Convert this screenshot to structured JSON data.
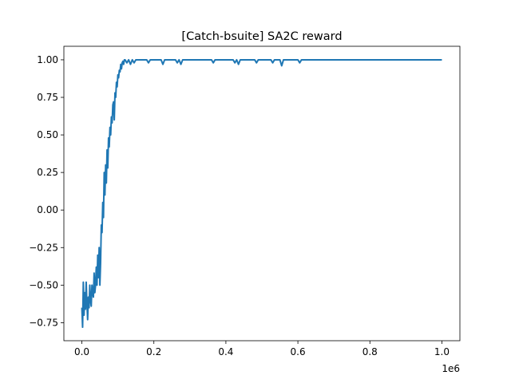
{
  "chart_data": {
    "type": "line",
    "title": "[Catch-bsuite] SA2C reward",
    "xlabel": "",
    "ylabel": "",
    "x_offset_label": "1e6",
    "xlim": [
      -50000,
      1050000
    ],
    "ylim": [
      -0.87,
      1.09
    ],
    "grid": false,
    "legend": "none",
    "x_ticks": [
      0,
      200000,
      400000,
      600000,
      800000,
      1000000
    ],
    "x_tick_labels": [
      "0.0",
      "0.2",
      "0.4",
      "0.6",
      "0.8",
      "1.0"
    ],
    "y_ticks": [
      -0.75,
      -0.5,
      -0.25,
      0.0,
      0.25,
      0.5,
      0.75,
      1.0
    ],
    "y_tick_labels": [
      "−0.75",
      "−0.50",
      "−0.25",
      "0.00",
      "0.25",
      "0.50",
      "0.75",
      "1.00"
    ],
    "series": [
      {
        "color": "#1f77b4",
        "x": [
          0,
          2000,
          4000,
          6000,
          8000,
          10000,
          12000,
          14000,
          16000,
          18000,
          20000,
          22000,
          24000,
          26000,
          28000,
          30000,
          32000,
          34000,
          36000,
          38000,
          40000,
          42000,
          44000,
          46000,
          48000,
          50000,
          52000,
          54000,
          56000,
          58000,
          60000,
          62000,
          64000,
          66000,
          68000,
          70000,
          72000,
          74000,
          76000,
          78000,
          80000,
          82000,
          84000,
          86000,
          88000,
          90000,
          92000,
          94000,
          96000,
          98000,
          100000,
          102000,
          104000,
          106000,
          108000,
          110000,
          112000,
          114000,
          116000,
          118000,
          120000,
          125000,
          130000,
          135000,
          140000,
          145000,
          150000,
          155000,
          160000,
          180000,
          185000,
          190000,
          220000,
          225000,
          230000,
          260000,
          265000,
          270000,
          275000,
          280000,
          285000,
          360000,
          365000,
          370000,
          420000,
          425000,
          430000,
          435000,
          440000,
          480000,
          485000,
          490000,
          525000,
          530000,
          535000,
          550000,
          555000,
          560000,
          600000,
          605000,
          610000,
          1000000
        ],
        "y": [
          -0.65,
          -0.78,
          -0.48,
          -0.7,
          -0.55,
          -0.66,
          -0.48,
          -0.62,
          -0.73,
          -0.58,
          -0.65,
          -0.5,
          -0.6,
          -0.64,
          -0.5,
          -0.55,
          -0.58,
          -0.42,
          -0.55,
          -0.5,
          -0.38,
          -0.5,
          -0.3,
          -0.45,
          -0.25,
          -0.5,
          -0.35,
          -0.1,
          -0.15,
          0.05,
          -0.05,
          0.25,
          0.1,
          0.3,
          0.18,
          0.4,
          0.28,
          0.48,
          0.42,
          0.55,
          0.5,
          0.62,
          0.58,
          0.7,
          0.72,
          0.6,
          0.78,
          0.75,
          0.85,
          0.82,
          0.9,
          0.88,
          0.93,
          0.92,
          0.97,
          0.94,
          0.98,
          0.99,
          0.97,
          1.0,
          1.0,
          0.98,
          1.0,
          0.97,
          1.0,
          0.98,
          1.0,
          1.0,
          1.0,
          1.0,
          0.98,
          1.0,
          1.0,
          0.97,
          1.0,
          1.0,
          0.98,
          1.0,
          0.97,
          1.0,
          1.0,
          1.0,
          0.98,
          1.0,
          1.0,
          0.98,
          1.0,
          0.97,
          1.0,
          1.0,
          0.98,
          1.0,
          1.0,
          0.98,
          1.0,
          1.0,
          0.96,
          1.0,
          1.0,
          0.98,
          1.0,
          1.0
        ]
      }
    ]
  }
}
